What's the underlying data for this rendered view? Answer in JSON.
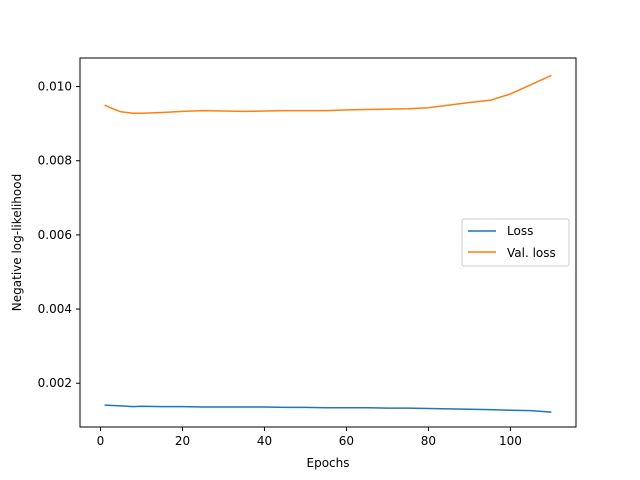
{
  "chart_data": {
    "type": "line",
    "title": "",
    "xlabel": "Epochs",
    "ylabel": "Negative log-likelihood",
    "xlim": [
      -5,
      116
    ],
    "ylim": [
      0.00082,
      0.01077
    ],
    "xticks": [
      0,
      20,
      40,
      60,
      80,
      100
    ],
    "xtick_labels": [
      "0",
      "20",
      "40",
      "60",
      "80",
      "100"
    ],
    "yticks": [
      0.002,
      0.004,
      0.006,
      0.008,
      0.01
    ],
    "ytick_labels": [
      "0.002",
      "0.004",
      "0.006",
      "0.008",
      "0.010"
    ],
    "grid": false,
    "legend": "center-right",
    "series": [
      {
        "name": "Loss",
        "color": "#1f77b4",
        "x": [
          1,
          5,
          8,
          10,
          15,
          20,
          25,
          30,
          35,
          40,
          45,
          50,
          55,
          60,
          65,
          70,
          75,
          80,
          85,
          90,
          95,
          100,
          105,
          110
        ],
        "y": [
          0.00141,
          0.00139,
          0.00137,
          0.00138,
          0.00137,
          0.00137,
          0.00136,
          0.00136,
          0.00136,
          0.00136,
          0.00135,
          0.00135,
          0.00134,
          0.00134,
          0.00134,
          0.00133,
          0.00133,
          0.00132,
          0.00131,
          0.0013,
          0.00129,
          0.00127,
          0.00126,
          0.00122
        ]
      },
      {
        "name": "Val. loss",
        "color": "#ff7f0e",
        "x": [
          1,
          3,
          5,
          8,
          10,
          15,
          20,
          25,
          30,
          35,
          40,
          45,
          50,
          55,
          60,
          65,
          70,
          75,
          80,
          85,
          90,
          95,
          100,
          105,
          110
        ],
        "y": [
          0.0095,
          0.0094,
          0.00932,
          0.00928,
          0.00928,
          0.0093,
          0.00933,
          0.00935,
          0.00934,
          0.00933,
          0.00934,
          0.00935,
          0.00935,
          0.00935,
          0.00937,
          0.00938,
          0.00939,
          0.0094,
          0.00943,
          0.0095,
          0.00957,
          0.00963,
          0.0098,
          0.01005,
          0.0103
        ]
      }
    ]
  }
}
